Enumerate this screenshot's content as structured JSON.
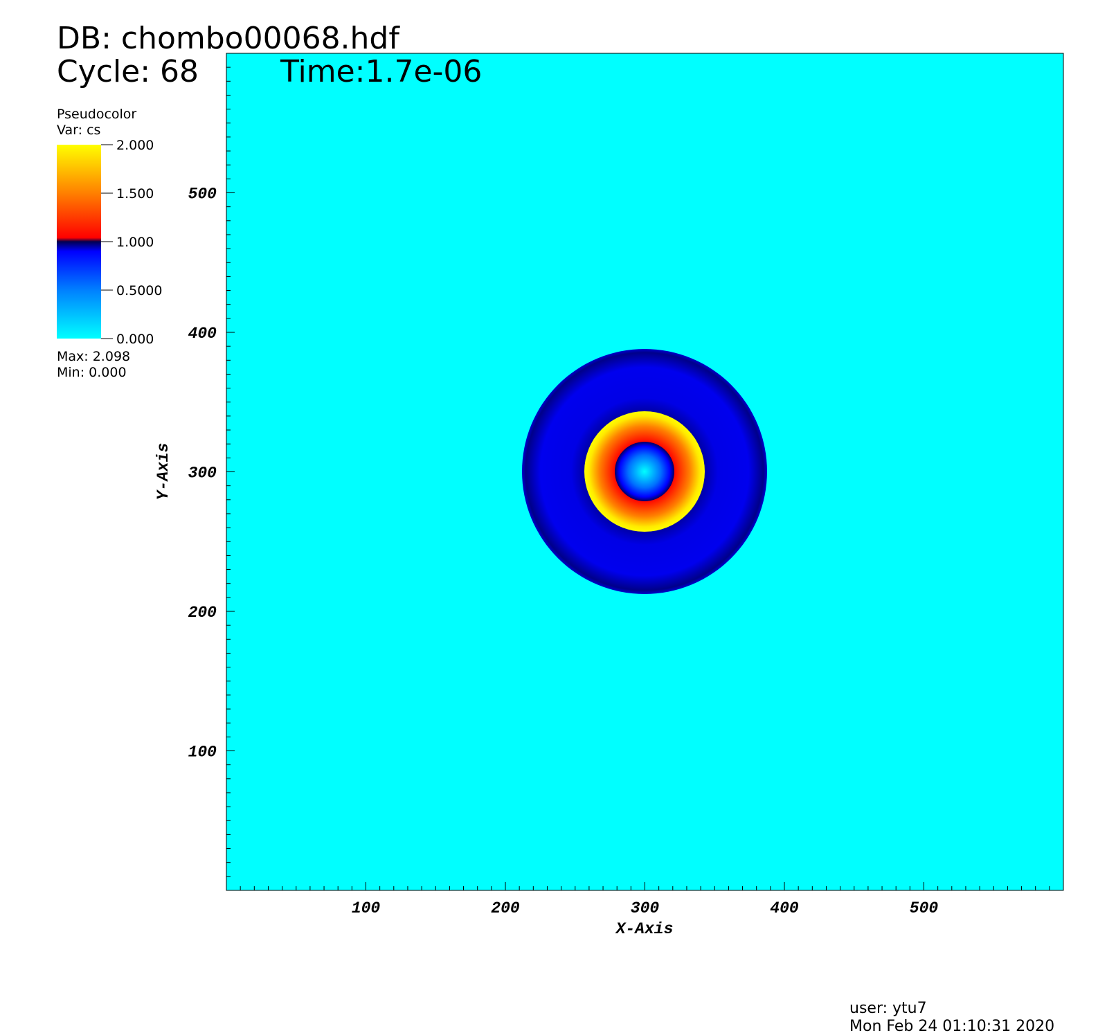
{
  "chart_data": {
    "type": "pseudocolor",
    "db": "DB: chombo00068.hdf",
    "cycle": "Cycle: 68",
    "time": "Time:1.7e-06",
    "legend_title": "Pseudocolor",
    "legend_var": "Var: cs",
    "legend_max": "Max:  2.098",
    "legend_min": "Min:  0.000",
    "clim": [
      0,
      2
    ],
    "cticks": [
      {
        "value": 2,
        "label": "2.000"
      },
      {
        "value": 1.5,
        "label": "1.500"
      },
      {
        "value": 1,
        "label": "1.000"
      },
      {
        "value": 0.5,
        "label": "0.5000"
      },
      {
        "value": 0,
        "label": "0.000"
      }
    ],
    "xlabel": "X-Axis",
    "ylabel": "Y-Axis",
    "xlim": [
      0,
      600
    ],
    "ylim": [
      0,
      600
    ],
    "xticks": [
      100,
      200,
      300,
      400,
      500
    ],
    "yticks": [
      100,
      200,
      300,
      400,
      500
    ],
    "user": "user: ytu7",
    "date": "Mon Feb 24 01:10:31 2020"
  }
}
